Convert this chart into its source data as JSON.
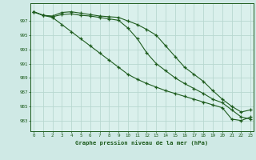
{
  "background_color": "#cfe9e5",
  "plot_bg_color": "#daf0ec",
  "grid_color": "#b8d8d0",
  "line_color": "#1e5c1e",
  "x_ticks": [
    0,
    1,
    2,
    3,
    4,
    5,
    6,
    7,
    8,
    9,
    10,
    11,
    12,
    13,
    14,
    15,
    16,
    17,
    18,
    19,
    20,
    21,
    22,
    23
  ],
  "y_ticks": [
    983,
    985,
    987,
    989,
    991,
    993,
    995,
    997
  ],
  "ylim": [
    981.5,
    999.5
  ],
  "xlim": [
    -0.3,
    23.3
  ],
  "xlabel": "Graphe pression niveau de la mer (hPa)",
  "series1": [
    998.3,
    997.8,
    997.7,
    998.2,
    998.3,
    998.1,
    997.9,
    997.7,
    997.6,
    997.5,
    997.0,
    996.5,
    995.8,
    995.0,
    993.5,
    992.0,
    990.5,
    989.5,
    988.5,
    987.2,
    986.0,
    985.0,
    984.2,
    984.5
  ],
  "series2": [
    998.3,
    997.8,
    997.6,
    997.9,
    998.0,
    997.8,
    997.7,
    997.5,
    997.3,
    997.1,
    996.0,
    994.5,
    992.5,
    991.0,
    990.0,
    989.0,
    988.2,
    987.5,
    986.8,
    986.0,
    985.5,
    984.5,
    983.5,
    983.2
  ],
  "series3": [
    998.3,
    997.8,
    997.5,
    996.5,
    995.5,
    994.5,
    993.5,
    992.5,
    991.5,
    990.5,
    989.5,
    988.8,
    988.2,
    987.7,
    987.2,
    986.8,
    986.4,
    986.0,
    985.6,
    985.2,
    984.8,
    983.2,
    983.0,
    983.5
  ]
}
